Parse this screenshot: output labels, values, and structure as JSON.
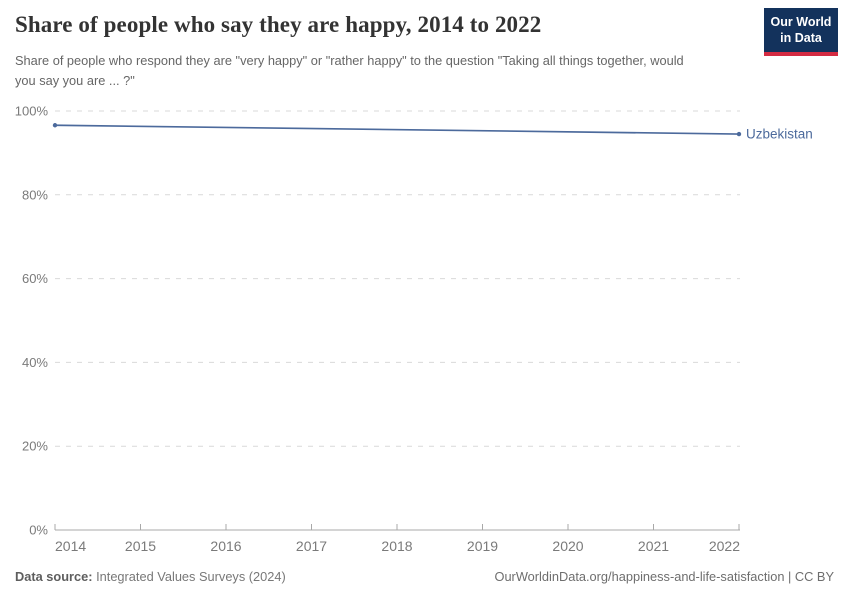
{
  "header": {
    "title": "Share of people who say they are happy, 2014 to 2022",
    "subtitle": "Share of people who respond they are \"very happy\" or \"rather happy\" to the question \"Taking all things together, would you say you are ... ?\"",
    "logo": {
      "line1": "Our World",
      "line2": "in Data",
      "bg_color": "#13325c",
      "accent_color": "#d42b42"
    }
  },
  "chart_data": {
    "type": "line",
    "title": "Share of people who say they are happy, 2014 to 2022",
    "xlabel": "",
    "ylabel": "",
    "xlim": [
      2014,
      2022
    ],
    "ylim": [
      0,
      100
    ],
    "grid": "horizontal-dashed",
    "legend_position": "end-of-line-label",
    "x_ticks": [
      {
        "value": 2014,
        "label": "2014"
      },
      {
        "value": 2015,
        "label": "2015"
      },
      {
        "value": 2016,
        "label": "2016"
      },
      {
        "value": 2017,
        "label": "2017"
      },
      {
        "value": 2018,
        "label": "2018"
      },
      {
        "value": 2019,
        "label": "2019"
      },
      {
        "value": 2020,
        "label": "2020"
      },
      {
        "value": 2021,
        "label": "2021"
      },
      {
        "value": 2022,
        "label": "2022"
      }
    ],
    "y_ticks": [
      {
        "value": 0,
        "label": "0%"
      },
      {
        "value": 20,
        "label": "20%"
      },
      {
        "value": 40,
        "label": "40%"
      },
      {
        "value": 60,
        "label": "60%"
      },
      {
        "value": 80,
        "label": "80%"
      },
      {
        "value": 100,
        "label": "100%"
      }
    ],
    "series": [
      {
        "name": "Uzbekistan",
        "color": "#4C6A9C",
        "points": [
          {
            "x": 2014,
            "y": 96.6
          },
          {
            "x": 2022,
            "y": 94.5
          }
        ]
      }
    ],
    "colors": {
      "gridline": "#d9d9d9",
      "axis": "#a8a8a8",
      "tick_label": "#7a7a7a"
    }
  },
  "footer": {
    "datasource_label": "Data source:",
    "datasource_value": " Integrated Values Surveys (2024)",
    "attribution": "OurWorldinData.org/happiness-and-life-satisfaction | CC BY"
  }
}
